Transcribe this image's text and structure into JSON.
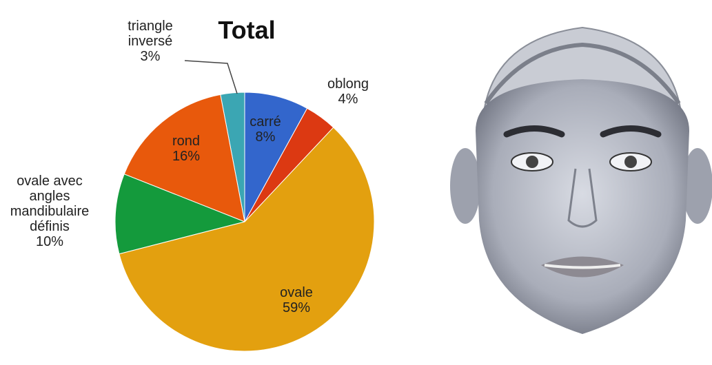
{
  "chart_data": {
    "type": "pie",
    "title": "Total",
    "categories": [
      "carré",
      "oblong",
      "ovale",
      "ovale avec angles mandibulaire définis",
      "rond",
      "triangle inversé"
    ],
    "values": [
      8,
      4,
      59,
      10,
      16,
      3
    ],
    "value_labels": [
      "8%",
      "4%",
      "59%",
      "10%",
      "16%",
      "3%"
    ],
    "colors": [
      "#3366cc",
      "#dc3912",
      "#e3a00f",
      "#149a3c",
      "#e8590c",
      "#3ba6b3"
    ]
  }
}
